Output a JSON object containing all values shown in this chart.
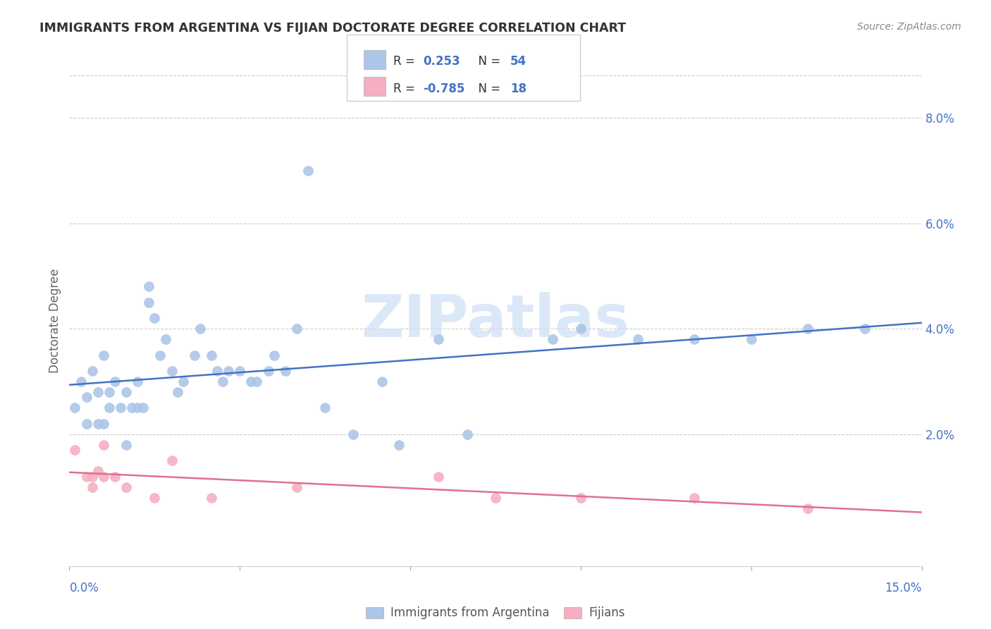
{
  "title": "IMMIGRANTS FROM ARGENTINA VS FIJIAN DOCTORATE DEGREE CORRELATION CHART",
  "source": "Source: ZipAtlas.com",
  "ylabel": "Doctorate Degree",
  "right_yticks": [
    "8.0%",
    "6.0%",
    "4.0%",
    "2.0%"
  ],
  "right_ytick_vals": [
    0.08,
    0.06,
    0.04,
    0.02
  ],
  "xmin": 0.0,
  "xmax": 0.15,
  "ymin": -0.005,
  "ymax": 0.088,
  "legend_r1_val": "0.253",
  "legend_r2_val": "-0.785",
  "legend_n1": "54",
  "legend_n2": "18",
  "blue_scatter_color": "#adc6e8",
  "pink_scatter_color": "#f5afc0",
  "blue_line_color": "#4472c4",
  "pink_line_color": "#e07090",
  "blue_legend_color": "#adc6e8",
  "pink_legend_color": "#f5afc0",
  "axis_label_color": "#4472c4",
  "title_color": "#333333",
  "grid_color": "#cccccc",
  "watermark_color": "#ccdff5",
  "legend_text_color": "#333333",
  "argentina_x": [
    0.001,
    0.002,
    0.003,
    0.003,
    0.004,
    0.005,
    0.005,
    0.006,
    0.006,
    0.007,
    0.007,
    0.008,
    0.009,
    0.01,
    0.01,
    0.011,
    0.012,
    0.012,
    0.013,
    0.014,
    0.014,
    0.015,
    0.016,
    0.017,
    0.018,
    0.019,
    0.02,
    0.022,
    0.023,
    0.025,
    0.026,
    0.027,
    0.028,
    0.03,
    0.032,
    0.033,
    0.035,
    0.036,
    0.038,
    0.04,
    0.042,
    0.045,
    0.05,
    0.055,
    0.058,
    0.065,
    0.07,
    0.085,
    0.09,
    0.1,
    0.11,
    0.12,
    0.13,
    0.14
  ],
  "argentina_y": [
    0.025,
    0.03,
    0.027,
    0.022,
    0.032,
    0.028,
    0.022,
    0.035,
    0.022,
    0.028,
    0.025,
    0.03,
    0.025,
    0.028,
    0.018,
    0.025,
    0.03,
    0.025,
    0.025,
    0.045,
    0.048,
    0.042,
    0.035,
    0.038,
    0.032,
    0.028,
    0.03,
    0.035,
    0.04,
    0.035,
    0.032,
    0.03,
    0.032,
    0.032,
    0.03,
    0.03,
    0.032,
    0.035,
    0.032,
    0.04,
    0.07,
    0.025,
    0.02,
    0.03,
    0.018,
    0.038,
    0.02,
    0.038,
    0.04,
    0.038,
    0.038,
    0.038,
    0.04,
    0.04
  ],
  "fijian_x": [
    0.001,
    0.003,
    0.004,
    0.004,
    0.005,
    0.006,
    0.006,
    0.008,
    0.01,
    0.015,
    0.018,
    0.025,
    0.04,
    0.065,
    0.075,
    0.09,
    0.11,
    0.13
  ],
  "fijian_y": [
    0.017,
    0.012,
    0.012,
    0.01,
    0.013,
    0.012,
    0.018,
    0.012,
    0.01,
    0.008,
    0.015,
    0.008,
    0.01,
    0.012,
    0.008,
    0.008,
    0.008,
    0.006
  ]
}
